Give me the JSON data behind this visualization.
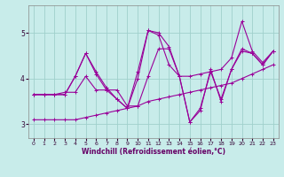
{
  "title": "",
  "xlabel": "Windchill (Refroidissement éolien,°C)",
  "ylabel": "",
  "background_color": "#c8ecea",
  "grid_color": "#a0d0cc",
  "line_color": "#990099",
  "xlim": [
    -0.5,
    23.5
  ],
  "ylim": [
    2.7,
    5.6
  ],
  "yticks": [
    3,
    4,
    5
  ],
  "xticks": [
    0,
    1,
    2,
    3,
    4,
    5,
    6,
    7,
    8,
    9,
    10,
    11,
    12,
    13,
    14,
    15,
    16,
    17,
    18,
    19,
    20,
    21,
    22,
    23
  ],
  "series": [
    [
      3.1,
      3.1,
      3.1,
      3.1,
      3.1,
      3.15,
      3.2,
      3.25,
      3.3,
      3.35,
      3.4,
      3.5,
      3.55,
      3.6,
      3.65,
      3.7,
      3.75,
      3.8,
      3.85,
      3.9,
      4.0,
      4.1,
      4.2,
      4.3
    ],
    [
      3.65,
      3.65,
      3.65,
      3.65,
      4.05,
      4.55,
      4.1,
      3.75,
      3.55,
      3.35,
      4.0,
      5.05,
      5.0,
      4.7,
      4.05,
      4.05,
      4.1,
      4.15,
      4.2,
      4.45,
      5.25,
      4.6,
      4.35,
      4.6
    ],
    [
      3.65,
      3.65,
      3.65,
      3.65,
      4.05,
      4.55,
      4.15,
      3.8,
      3.55,
      3.35,
      4.15,
      5.05,
      4.95,
      4.3,
      4.05,
      3.05,
      3.3,
      4.2,
      3.5,
      4.2,
      4.6,
      4.55,
      4.3,
      4.6
    ],
    [
      3.65,
      3.65,
      3.65,
      3.7,
      3.7,
      4.05,
      3.75,
      3.75,
      3.75,
      3.4,
      3.4,
      4.05,
      4.65,
      4.65,
      4.05,
      3.05,
      3.35,
      4.15,
      3.55,
      4.2,
      4.65,
      4.55,
      4.3,
      4.6
    ]
  ]
}
